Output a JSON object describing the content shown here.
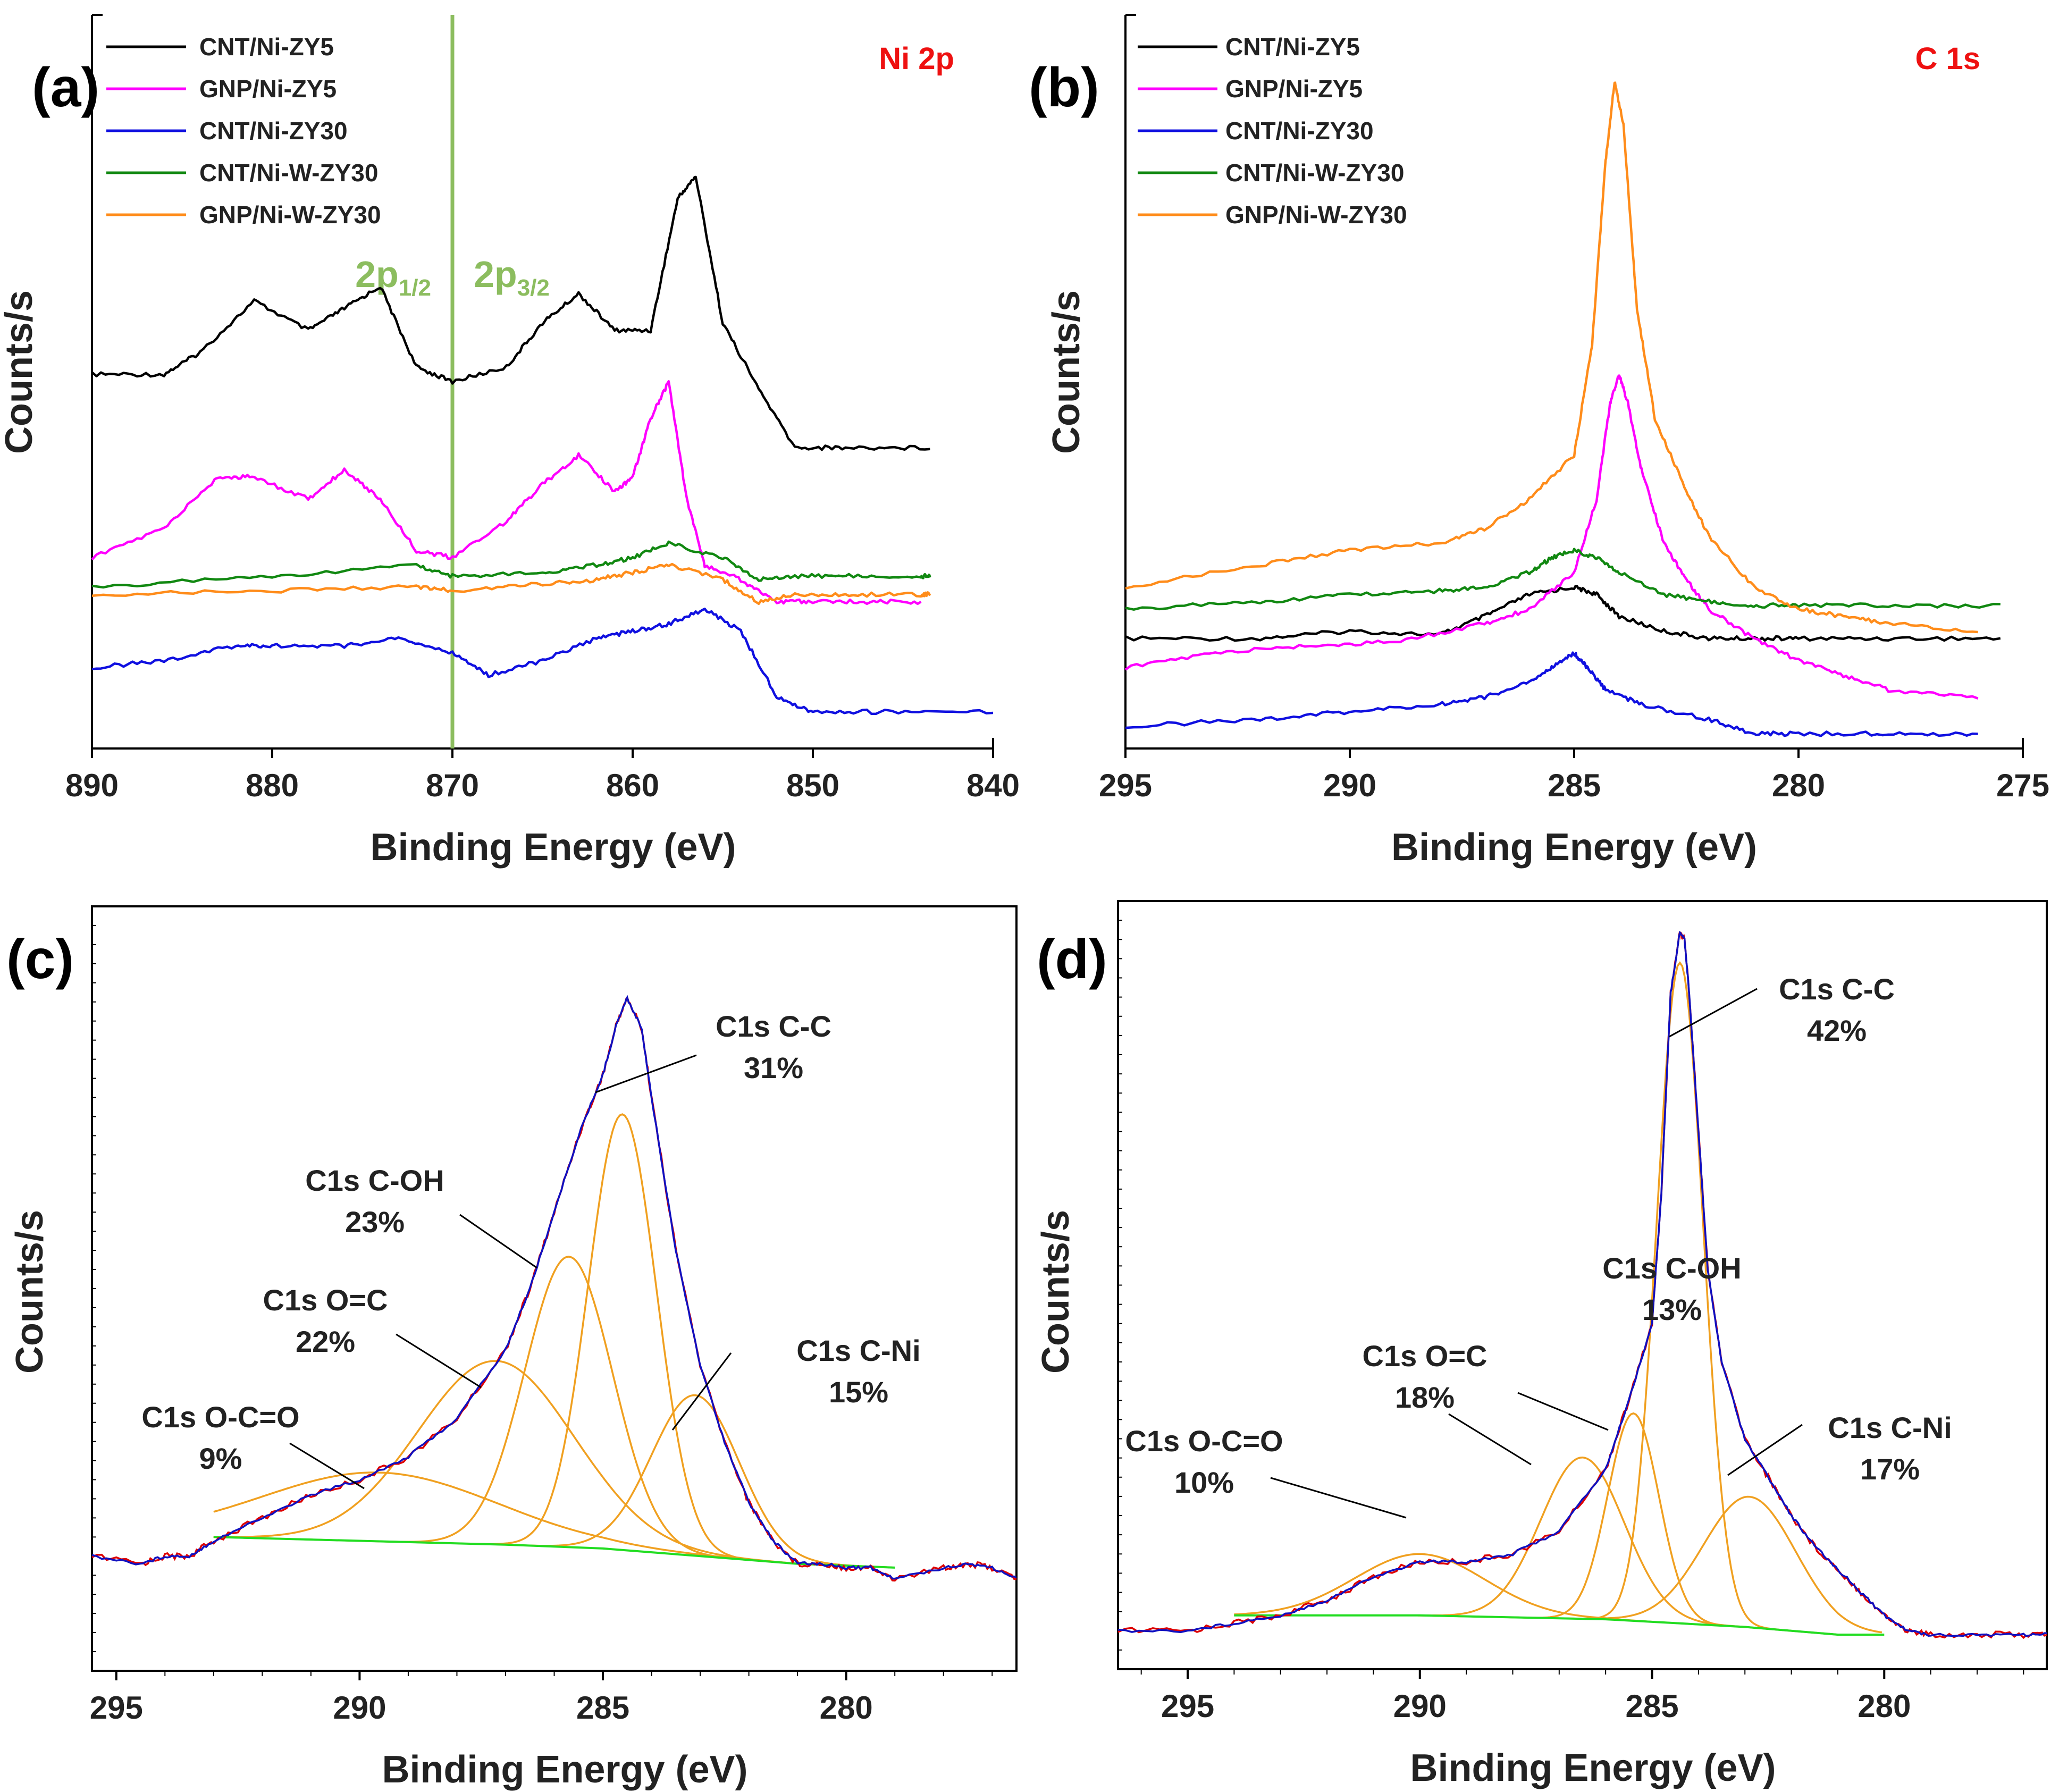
{
  "colors": {
    "CNT/Ni-ZY5": "#000000",
    "GNP/Ni-ZY5": "#ff00ff",
    "CNT/Ni-ZY30": "#1010e0",
    "CNT/Ni-W-ZY30": "#118811",
    "GNP/Ni-W-ZY30": "#ff8c1a",
    "fit": "#f0a020",
    "envelope": "#1010c0",
    "raw": "#dd0000",
    "background": "#22dd22",
    "marker": "#8cbd5f",
    "region_label": "#ee1111"
  },
  "chart_data": [
    {
      "panel": "(a)",
      "type": "line",
      "region": "Ni 2p",
      "xlabel": "Binding Energy (eV)",
      "ylabel": "Counts/s",
      "xlim": [
        890,
        840
      ],
      "ylim": [
        0,
        100
      ],
      "xticks": [
        "890",
        "880",
        "870",
        "860",
        "850",
        "840"
      ],
      "marker_line": {
        "x": 870
      },
      "annotations": [
        {
          "main": "2p",
          "sub": "1/2"
        },
        {
          "main": "2p",
          "sub": "3/2"
        }
      ],
      "legend": [
        "CNT/Ni-ZY5",
        "GNP/Ni-ZY5",
        "CNT/Ni-ZY30",
        "CNT/Ni-W-ZY30",
        "GNP/Ni-W-ZY30"
      ],
      "series": [
        {
          "name": "CNT/Ni-ZY5",
          "x": [
            890,
            886,
            884,
            881,
            878,
            876,
            874,
            872,
            870,
            867,
            865,
            863,
            861,
            859,
            857.5,
            856.5,
            855,
            853,
            851,
            848,
            843.5
          ],
          "values": [
            51,
            51,
            54,
            61,
            57,
            60,
            63,
            52,
            50,
            52,
            58,
            62,
            57,
            57,
            75,
            78,
            58,
            49,
            41,
            41,
            41
          ]
        },
        {
          "name": "GNP/Ni-ZY5",
          "x": [
            890,
            886,
            883,
            881,
            878,
            876,
            874,
            872,
            870,
            867,
            865,
            863,
            861,
            860,
            859,
            858,
            857,
            856,
            854,
            852,
            850,
            847,
            844
          ],
          "values": [
            26,
            30,
            37,
            37,
            34,
            38,
            34,
            27,
            26,
            31,
            36,
            40,
            35,
            37,
            45,
            50,
            34,
            25,
            23,
            20,
            20,
            20,
            20
          ]
        },
        {
          "name": "CNT/Ni-ZY30",
          "x": [
            890,
            886,
            882,
            880,
            876,
            873,
            870,
            868,
            865,
            862,
            860,
            858,
            856,
            854,
            852,
            850,
            846,
            840
          ],
          "values": [
            11,
            12,
            14,
            14,
            14,
            15,
            13,
            10,
            12,
            15,
            16,
            17,
            19,
            16,
            7,
            5,
            5,
            5
          ]
        },
        {
          "name": "CNT/Ni-W-ZY30",
          "x": [
            890,
            880,
            872,
            870,
            865,
            862,
            860,
            858,
            855,
            853,
            851,
            848,
            844,
            843.5
          ],
          "values": [
            22,
            23.5,
            25,
            23.5,
            24,
            25,
            26,
            28,
            26,
            23,
            23.5,
            23.5,
            23.5,
            23.5
          ]
        },
        {
          "name": "GNP/Ni-W-ZY30",
          "x": [
            890,
            880,
            872,
            870,
            865,
            862,
            860,
            858,
            855,
            853,
            851,
            848,
            844,
            843.5
          ],
          "values": [
            21,
            21.5,
            22,
            21.5,
            22.5,
            23,
            24,
            25,
            23,
            20,
            21,
            21,
            21,
            21
          ]
        }
      ]
    },
    {
      "panel": "(b)",
      "type": "line",
      "region": "C 1s",
      "xlabel": "Binding Energy (eV)",
      "ylabel": "Counts/s",
      "xlim": [
        295,
        275
      ],
      "ylim": [
        0,
        100
      ],
      "xticks": [
        "295",
        "290",
        "285",
        "280",
        "275"
      ],
      "legend": [
        "CNT/Ni-ZY5",
        "GNP/Ni-ZY5",
        "CNT/Ni-ZY30",
        "CNT/Ni-W-ZY30",
        "GNP/Ni-W-ZY30"
      ],
      "series": [
        {
          "name": "CNT/Ni-ZY5",
          "x": [
            295,
            292,
            290,
            288,
            287,
            286,
            285,
            284.5,
            284,
            283,
            282,
            281,
            280,
            278,
            275.5
          ],
          "values": [
            15,
            15,
            16,
            15.5,
            18,
            21,
            22,
            21,
            18,
            16,
            15,
            15,
            15,
            15,
            15
          ]
        },
        {
          "name": "GNP/Ni-ZY5",
          "x": [
            295,
            293,
            291,
            289,
            287,
            286,
            285,
            284.5,
            284.2,
            284,
            283.8,
            283.5,
            283,
            282.5,
            282,
            281,
            280,
            279,
            278,
            276
          ],
          "values": [
            11,
            13,
            14,
            14.5,
            17,
            19,
            24,
            34,
            47,
            51,
            47,
            38,
            28,
            23,
            19,
            15,
            12,
            10,
            8,
            7
          ]
        },
        {
          "name": "CNT/Ni-ZY30",
          "x": [
            295,
            292,
            290,
            288,
            287,
            286,
            285.5,
            285,
            284.7,
            284.3,
            283.5,
            282,
            281,
            280,
            278,
            276
          ],
          "values": [
            3,
            4,
            5,
            6,
            7,
            9,
            11,
            13,
            11,
            8,
            6,
            4,
            2,
            2,
            2,
            2
          ]
        },
        {
          "name": "CNT/Ni-W-ZY30",
          "x": [
            295,
            292,
            290,
            288,
            287,
            286,
            285.5,
            285,
            284.5,
            284,
            283,
            282,
            281,
            280,
            278,
            275.5
          ],
          "values": [
            19,
            20,
            21,
            21.5,
            22,
            24,
            26,
            27,
            26,
            24,
            21,
            20,
            19.5,
            19.5,
            19.5,
            19.5
          ]
        },
        {
          "name": "GNP/Ni-W-ZY30",
          "x": [
            295,
            292,
            290,
            288,
            287,
            286,
            285,
            284.6,
            284.3,
            284.1,
            283.9,
            283.6,
            283.2,
            282.5,
            282,
            281,
            280,
            279,
            278,
            276
          ],
          "values": [
            22,
            25,
            27,
            28,
            30,
            34,
            40,
            55,
            80,
            91,
            85,
            60,
            45,
            35,
            29,
            22,
            19,
            18,
            17,
            16
          ]
        }
      ]
    },
    {
      "panel": "(c)",
      "type": "line",
      "xlabel": "Binding Energy (eV)",
      "ylabel": "Counts/s",
      "xlim": [
        295.5,
        276.5
      ],
      "ylim": [
        0,
        100
      ],
      "xticks": [
        "295",
        "290",
        "285",
        "280"
      ],
      "legend": [],
      "envelope": {
        "x": [
          295.5,
          294.5,
          294,
          293.5,
          293,
          292,
          291,
          290,
          289,
          288,
          287,
          286.5,
          286,
          285.5,
          285,
          284.7,
          284.5,
          284.2,
          284,
          283.5,
          283,
          282.5,
          282,
          281.5,
          281,
          280.5,
          280,
          279.5,
          279,
          278,
          277.5,
          277,
          276.5
        ],
        "values": [
          15,
          14,
          15,
          15,
          17,
          20,
          23,
          25,
          28,
          33,
          42,
          50,
          60,
          70,
          78,
          85,
          88,
          84,
          75,
          55,
          40,
          30,
          22,
          17,
          14,
          14,
          13.5,
          13.5,
          12,
          13.5,
          14,
          13.5,
          12
        ]
      },
      "background": {
        "x": [
          293,
          290,
          287,
          285,
          283,
          281,
          279
        ],
        "values": [
          17.5,
          17,
          16.5,
          16,
          15,
          14,
          13.5
        ]
      },
      "components": [
        {
          "name": "C1s O-C=O",
          "center": 289.6,
          "height": 9,
          "width": 2.4
        },
        {
          "name": "C1s O=C",
          "center": 287.2,
          "height": 24,
          "width": 1.6
        },
        {
          "name": "C1s C-OH",
          "center": 285.7,
          "height": 38,
          "width": 0.9
        },
        {
          "name": "C1s C-C",
          "center": 284.6,
          "height": 57,
          "width": 0.7
        },
        {
          "name": "C1s C-Ni",
          "center": 283.1,
          "height": 21,
          "width": 0.9
        }
      ],
      "labels": [
        {
          "name": "C1s C-C",
          "pct": "31%"
        },
        {
          "name": "C1s C-OH",
          "pct": "23%"
        },
        {
          "name": "C1s O=C",
          "pct": "22%"
        },
        {
          "name": "C1s C-Ni",
          "pct": "15%"
        },
        {
          "name": "C1s O-C=O",
          "pct": "9%"
        }
      ]
    },
    {
      "panel": "(d)",
      "type": "line",
      "xlabel": "Binding Energy (eV)",
      "ylabel": "Counts/s",
      "xlim": [
        296.5,
        276.5
      ],
      "ylim": [
        0,
        100
      ],
      "xticks": [
        "295",
        "290",
        "285",
        "280"
      ],
      "legend": [],
      "envelope": {
        "x": [
          296.5,
          295,
          294,
          293,
          292,
          291,
          290,
          289,
          288,
          287,
          286,
          285.5,
          285,
          284.8,
          284.6,
          284.4,
          284.3,
          284.2,
          284,
          283.8,
          283.5,
          283,
          282.5,
          282,
          281.5,
          281,
          280.5,
          280,
          279.5,
          279,
          278,
          277,
          276.5
        ],
        "values": [
          5,
          5,
          6,
          7,
          9,
          12,
          14,
          14,
          15,
          18,
          26,
          35,
          45,
          62,
          88,
          96,
          95,
          88,
          70,
          52,
          40,
          30,
          25,
          20,
          16,
          13,
          10,
          7,
          5,
          4.5,
          4.5,
          4.5,
          4.5
        ]
      },
      "background": {
        "x": [
          294,
          290,
          286,
          284.5,
          283,
          281,
          280
        ],
        "values": [
          7,
          7,
          6.5,
          6,
          5.5,
          4.5,
          4.5
        ]
      },
      "components": [
        {
          "name": "C1s O-C=O",
          "center": 290.0,
          "height": 8,
          "width": 1.4
        },
        {
          "name": "C1s O=C",
          "center": 286.5,
          "height": 21,
          "width": 0.9
        },
        {
          "name": "C1s C-OH",
          "center": 285.4,
          "height": 27,
          "width": 0.55
        },
        {
          "name": "C1s C-C",
          "center": 284.4,
          "height": 86,
          "width": 0.5
        },
        {
          "name": "C1s C-Ni",
          "center": 282.9,
          "height": 17,
          "width": 1.0
        }
      ],
      "labels": [
        {
          "name": "C1s C-C",
          "pct": "42%"
        },
        {
          "name": "C1s C-OH",
          "pct": "13%"
        },
        {
          "name": "C1s O=C",
          "pct": "18%"
        },
        {
          "name": "C1s C-Ni",
          "pct": "17%"
        },
        {
          "name": "C1s O-C=O",
          "pct": "10%"
        }
      ]
    }
  ]
}
